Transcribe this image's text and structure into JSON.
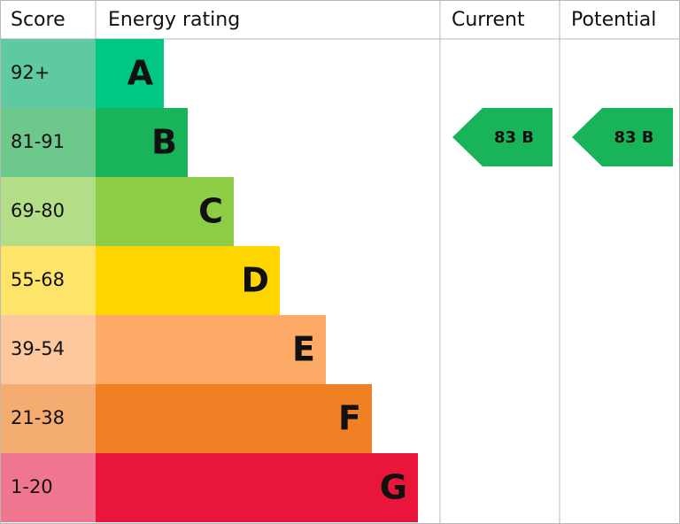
{
  "header": {
    "score": "Score",
    "rating": "Energy rating",
    "current": "Current",
    "potential": "Potential"
  },
  "rows": [
    {
      "score": "92+",
      "letter": "A",
      "color": "#00c781",
      "score_color": "#5fc9a2"
    },
    {
      "score": "81-91",
      "letter": "B",
      "color": "#19b459",
      "score_color": "#6dc88c"
    },
    {
      "score": "69-80",
      "letter": "C",
      "color": "#8dce46",
      "score_color": "#b4dd87"
    },
    {
      "score": "55-68",
      "letter": "D",
      "color": "#ffd500",
      "score_color": "#ffe46a"
    },
    {
      "score": "39-54",
      "letter": "E",
      "color": "#fcaa65",
      "score_color": "#fdc89d"
    },
    {
      "score": "21-38",
      "letter": "F",
      "color": "#ef8023",
      "score_color": "#f4ac70"
    },
    {
      "score": "1-20",
      "letter": "G",
      "color": "#e9153b",
      "score_color": "#f0768f"
    }
  ],
  "current": {
    "label": "83 B",
    "color": "#19b459"
  },
  "potential": {
    "label": "83 B",
    "color": "#19b459"
  }
}
